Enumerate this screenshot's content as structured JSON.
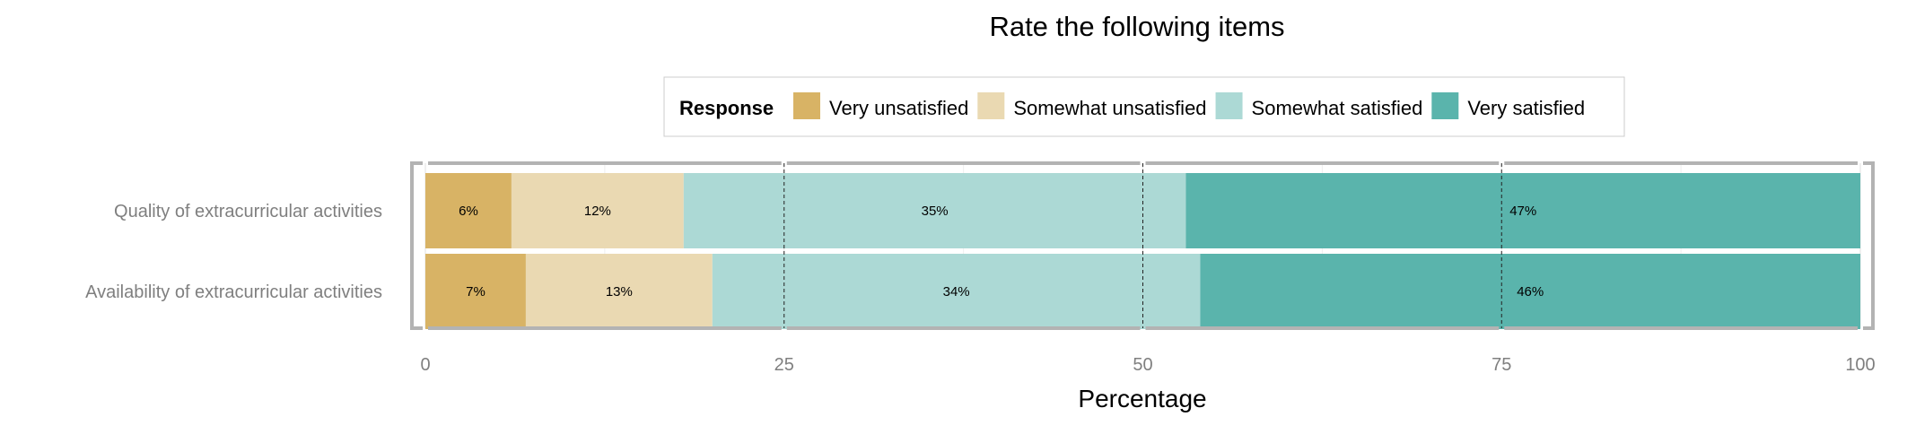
{
  "chart_data": {
    "type": "bar",
    "orientation": "horizontal",
    "stacked": true,
    "title": "Rate the following items",
    "xlabel": "Percentage",
    "ylabel": "",
    "xlim": [
      0,
      100
    ],
    "x_ticks": [
      0,
      25,
      50,
      75,
      100
    ],
    "grid": true,
    "legend": {
      "title": "Response",
      "position": "top"
    },
    "categories": [
      "Quality of extracurricular activities",
      "Availability of extracurricular activities"
    ],
    "series": [
      {
        "name": "Very unsatisfied",
        "color": "#D8B365",
        "values": [
          6,
          7
        ],
        "labels": [
          "6%",
          "7%"
        ]
      },
      {
        "name": "Somewhat unsatisfied",
        "color": "#EAD9B2",
        "values": [
          12,
          13
        ],
        "labels": [
          "12%",
          "13%"
        ]
      },
      {
        "name": "Somewhat satisfied",
        "color": "#ACD9D5",
        "values": [
          35,
          34
        ],
        "labels": [
          "35%",
          "34%"
        ]
      },
      {
        "name": "Very satisfied",
        "color": "#5AB4AC",
        "values": [
          47,
          46
        ],
        "labels": [
          "47%",
          "46%"
        ]
      }
    ]
  }
}
